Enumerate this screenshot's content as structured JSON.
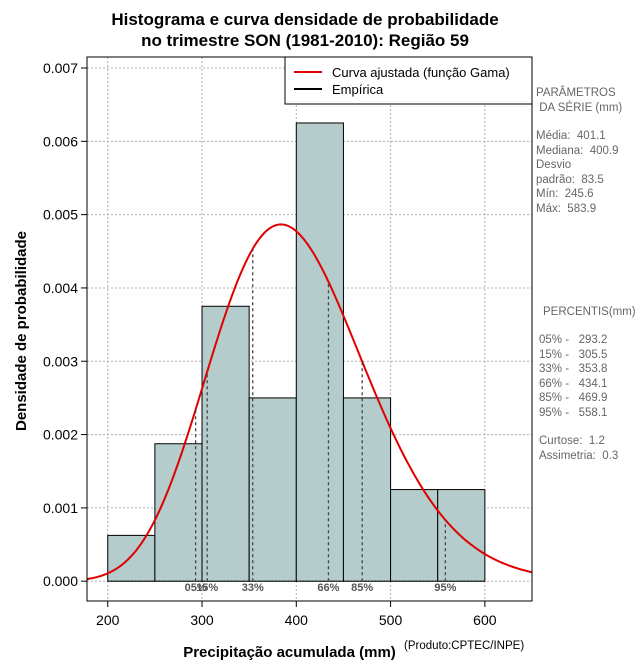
{
  "chart_data": {
    "type": "bar",
    "title_line1": "Histograma e curva densidade de probabilidade",
    "title_line2": "no trimestre SON (1981-2010): Região 59",
    "xlabel": "Precipitação acumulada (mm)",
    "ylabel": "Densidade de probabilidade",
    "credit": "(Produto:CPTEC/INPE)",
    "xlim": [
      178,
      650
    ],
    "ylim": [
      -0.00027,
      0.00715
    ],
    "x_ticks": [
      "200",
      "300",
      "400",
      "500",
      "600"
    ],
    "y_ticks": [
      "0.000",
      "0.001",
      "0.002",
      "0.003",
      "0.004",
      "0.005",
      "0.006",
      "0.007"
    ],
    "bins": [
      {
        "from": 200,
        "to": 250,
        "density": 0.000625
      },
      {
        "from": 250,
        "to": 300,
        "density": 0.001875
      },
      {
        "from": 300,
        "to": 350,
        "density": 0.00375
      },
      {
        "from": 350,
        "to": 400,
        "density": 0.0025
      },
      {
        "from": 400,
        "to": 450,
        "density": 0.00625
      },
      {
        "from": 450,
        "to": 500,
        "density": 0.0025
      },
      {
        "from": 500,
        "to": 550,
        "density": 0.00125
      },
      {
        "from": 550,
        "to": 600,
        "density": 0.00125
      }
    ],
    "gamma_fit": {
      "mean": 401.1,
      "sd": 83.5
    },
    "percentile_lines": [
      {
        "label": "05%",
        "value": 293.2
      },
      {
        "label": "15%",
        "value": 305.5
      },
      {
        "label": "33%",
        "value": 353.8
      },
      {
        "label": "66%",
        "value": 434.1
      },
      {
        "label": "85%",
        "value": 469.9
      },
      {
        "label": "95%",
        "value": 558.1
      }
    ],
    "legend": [
      {
        "label": "Curva ajustada (função Gama)",
        "color": "#e00000"
      },
      {
        "label": "Empírica",
        "color": "#000000"
      }
    ],
    "bar_color": "#b4cccb",
    "grid": true
  },
  "stats": {
    "header": "PARÂMETROS\n DA SÉRIE (mm)",
    "body": "Média:  401.1\nMediana:  400.9\nDesvio\npadrão:  83.5\nMín:  245.6\nMáx:  583.9"
  },
  "percentis": {
    "header": "PERCENTIS(mm)",
    "body": "05% -   293.2\n15% -   305.5\n33% -   353.8\n66% -   434.1\n85% -   469.9\n95% -   558.1"
  },
  "shape": {
    "body": "Curtose:  1.2\nAssimetria:  0.3"
  }
}
